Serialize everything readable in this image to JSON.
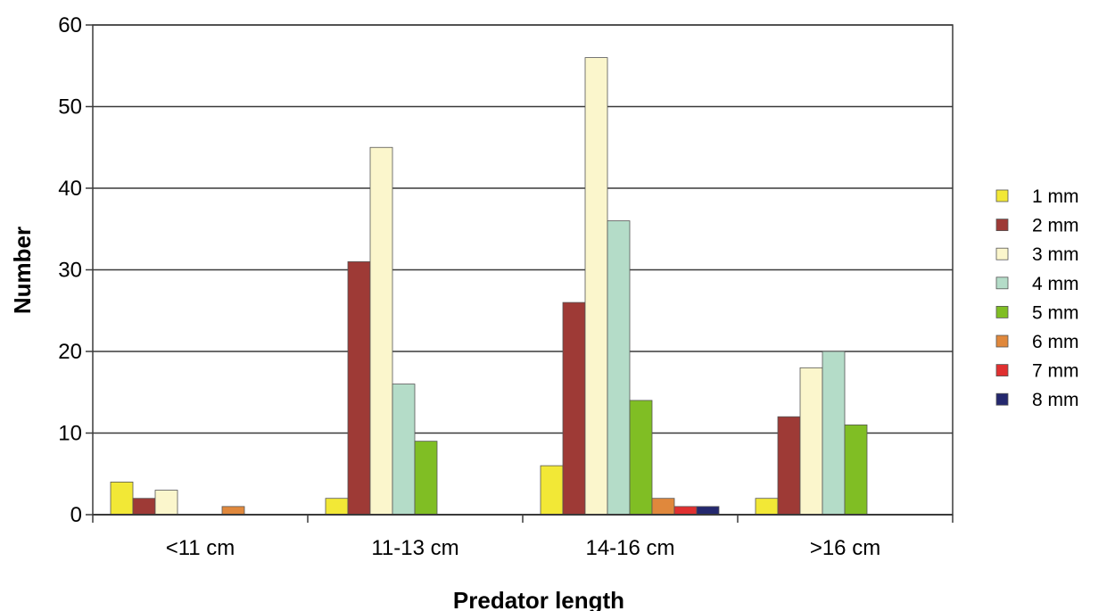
{
  "chart_data": {
    "type": "bar",
    "title": "",
    "xlabel": "Predator length",
    "ylabel": "Number",
    "ylim": [
      0,
      60
    ],
    "yticks": [
      0,
      10,
      20,
      30,
      40,
      50,
      60
    ],
    "grid": true,
    "legend_position": "right",
    "categories": [
      "<11 cm",
      "11-13 cm",
      "14-16 cm",
      ">16 cm"
    ],
    "series": [
      {
        "name": "1 mm",
        "color": "#f2e836",
        "values": [
          4,
          2,
          6,
          2
        ]
      },
      {
        "name": "2 mm",
        "color": "#9e3a36",
        "values": [
          2,
          31,
          26,
          12
        ]
      },
      {
        "name": "3 mm",
        "color": "#fbf6cc",
        "values": [
          3,
          45,
          56,
          18
        ]
      },
      {
        "name": "4 mm",
        "color": "#b4dcc8",
        "values": [
          0,
          16,
          36,
          20
        ]
      },
      {
        "name": "5 mm",
        "color": "#80be24",
        "values": [
          0,
          9,
          14,
          11
        ]
      },
      {
        "name": "6 mm",
        "color": "#e0883c",
        "values": [
          1,
          0,
          2,
          0
        ]
      },
      {
        "name": "7 mm",
        "color": "#e03030",
        "values": [
          0,
          0,
          1,
          0
        ]
      },
      {
        "name": "8 mm",
        "color": "#24286e",
        "values": [
          0,
          0,
          1,
          0
        ]
      }
    ]
  }
}
